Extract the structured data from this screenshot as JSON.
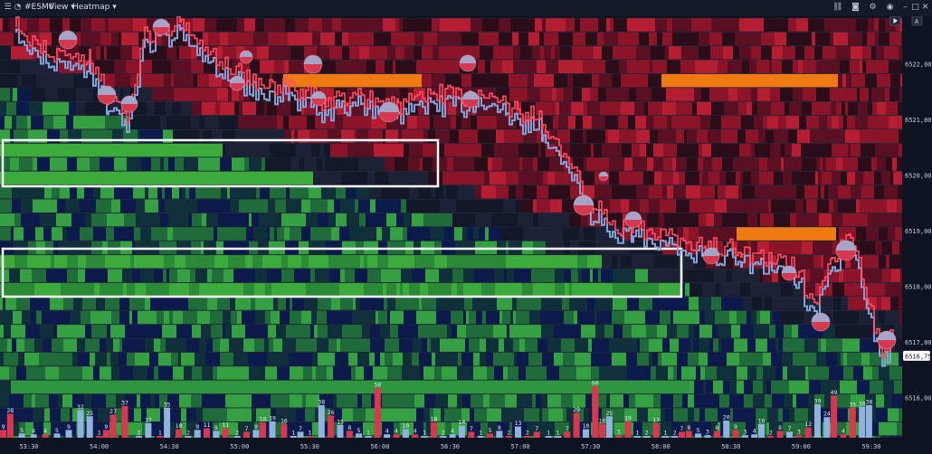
{
  "toolbar": {
    "symbol": "#ESM6",
    "view_label": "View",
    "mode_label": "Heatmap",
    "icons": [
      "link-icon",
      "camera-icon",
      "eye-icon",
      "gear-icon",
      "minimize-icon",
      "maximize-icon",
      "close-icon"
    ]
  },
  "colors": {
    "background": "#0b0f1c",
    "bid_liquidity": "#3cab3c",
    "ask_liquidity": "#c8203a",
    "ask_hot": "#ef7a12",
    "buy_volume": "#8fb3de",
    "sell_volume": "#d6384f",
    "price_up": "#ff4d63",
    "price_down": "#7fa2d8",
    "highlight_box": "#ffffff"
  },
  "chart_data": {
    "type": "heatmap",
    "x_labels": [
      "53:30",
      "54:00",
      "54:30",
      "55:00",
      "55:30",
      "56:00",
      "56:30",
      "57:00",
      "57:30",
      "58:00",
      "58:30",
      "59:00",
      "59:30"
    ],
    "y_labels": [
      "6522,00",
      "6521,00",
      "6520,00",
      "6519,00",
      "6518,00",
      "6517,00",
      "6516,00"
    ],
    "ylim": [
      6515.75,
      6522.5
    ],
    "current_price": "6516,75",
    "volume_bar_labels": [
      {
        "x": "53:19",
        "v": 9,
        "side": "sell"
      },
      {
        "x": "53:22",
        "v": 28,
        "side": "sell"
      },
      {
        "x": "53:27",
        "v": 5,
        "side": "buy"
      },
      {
        "x": "53:32",
        "v": 4,
        "side": "buy"
      },
      {
        "x": "53:37",
        "v": 4,
        "side": "sell"
      },
      {
        "x": "53:42",
        "v": 5,
        "side": "buy"
      },
      {
        "x": "53:47",
        "v": 9,
        "side": "buy"
      },
      {
        "x": "53:52",
        "v": 32,
        "side": "buy"
      },
      {
        "x": "53:56",
        "v": 25,
        "side": "buy"
      },
      {
        "x": "54:00",
        "v": 1,
        "side": "sell"
      },
      {
        "x": "54:03",
        "v": 9,
        "side": "sell"
      },
      {
        "x": "54:06",
        "v": 27,
        "side": "sell"
      },
      {
        "x": "54:11",
        "v": 37,
        "side": "sell"
      },
      {
        "x": "54:17",
        "v": 2,
        "side": "buy"
      },
      {
        "x": "54:21",
        "v": 17,
        "side": "buy"
      },
      {
        "x": "54:26",
        "v": 1,
        "side": "sell"
      },
      {
        "x": "54:29",
        "v": 35,
        "side": "buy"
      },
      {
        "x": "54:34",
        "v": 10,
        "side": "sell"
      },
      {
        "x": "54:38",
        "v": 2,
        "side": "buy"
      },
      {
        "x": "54:42",
        "v": 9,
        "side": "buy"
      },
      {
        "x": "54:46",
        "v": 11,
        "side": "sell"
      },
      {
        "x": "54:50",
        "v": 8,
        "side": "buy"
      },
      {
        "x": "54:54",
        "v": 11,
        "side": "sell"
      },
      {
        "x": "54:59",
        "v": 2,
        "side": "buy"
      },
      {
        "x": "55:03",
        "v": 7,
        "side": "sell"
      },
      {
        "x": "55:07",
        "v": 9,
        "side": "buy"
      },
      {
        "x": "55:10",
        "v": 18,
        "side": "sell"
      },
      {
        "x": "55:14",
        "v": 19,
        "side": "buy"
      },
      {
        "x": "55:19",
        "v": 16,
        "side": "sell"
      },
      {
        "x": "55:23",
        "v": 1,
        "side": "buy"
      },
      {
        "x": "55:26",
        "v": 7,
        "side": "buy"
      },
      {
        "x": "55:30",
        "v": 1,
        "side": "sell"
      },
      {
        "x": "55:35",
        "v": 38,
        "side": "buy"
      },
      {
        "x": "55:39",
        "v": 26,
        "side": "sell"
      },
      {
        "x": "55:43",
        "v": 15,
        "side": "buy"
      },
      {
        "x": "55:47",
        "v": 8,
        "side": "sell"
      },
      {
        "x": "55:51",
        "v": 5,
        "side": "buy"
      },
      {
        "x": "55:55",
        "v": 1,
        "side": "buy"
      },
      {
        "x": "55:59",
        "v": 58,
        "side": "sell"
      },
      {
        "x": "56:03",
        "v": 4,
        "side": "buy"
      },
      {
        "x": "56:07",
        "v": 4,
        "side": "sell"
      },
      {
        "x": "56:11",
        "v": 10,
        "side": "buy"
      },
      {
        "x": "56:15",
        "v": 4,
        "side": "sell"
      },
      {
        "x": "56:19",
        "v": 1,
        "side": "buy"
      },
      {
        "x": "56:23",
        "v": 18,
        "side": "sell"
      },
      {
        "x": "56:27",
        "v": 2,
        "side": "buy"
      },
      {
        "x": "56:31",
        "v": 4,
        "side": "buy"
      },
      {
        "x": "56:35",
        "v": 14,
        "side": "buy"
      },
      {
        "x": "56:39",
        "v": 7,
        "side": "sell"
      },
      {
        "x": "56:43",
        "v": 1,
        "side": "buy"
      },
      {
        "x": "56:47",
        "v": 5,
        "side": "sell"
      },
      {
        "x": "56:51",
        "v": 8,
        "side": "buy"
      },
      {
        "x": "56:55",
        "v": 2,
        "side": "sell"
      },
      {
        "x": "56:59",
        "v": 13,
        "side": "buy"
      },
      {
        "x": "57:03",
        "v": 2,
        "side": "sell"
      },
      {
        "x": "57:07",
        "v": 7,
        "side": "sell"
      },
      {
        "x": "57:12",
        "v": 1,
        "side": "buy"
      },
      {
        "x": "57:16",
        "v": 1,
        "side": "buy"
      },
      {
        "x": "57:20",
        "v": 7,
        "side": "sell"
      },
      {
        "x": "57:24",
        "v": 29,
        "side": "sell"
      },
      {
        "x": "57:28",
        "v": 10,
        "side": "buy"
      },
      {
        "x": "57:32",
        "v": 60,
        "side": "sell"
      },
      {
        "x": "57:35",
        "v": 16,
        "side": "sell"
      },
      {
        "x": "57:38",
        "v": 25,
        "side": "buy"
      },
      {
        "x": "57:42",
        "v": 3,
        "side": "sell"
      },
      {
        "x": "57:46",
        "v": 19,
        "side": "sell"
      },
      {
        "x": "57:50",
        "v": 1,
        "side": "buy"
      },
      {
        "x": "57:54",
        "v": 2,
        "side": "buy"
      },
      {
        "x": "57:58",
        "v": 17,
        "side": "sell"
      },
      {
        "x": "58:02",
        "v": 1,
        "side": "buy"
      },
      {
        "x": "58:06",
        "v": 2,
        "side": "buy"
      },
      {
        "x": "58:09",
        "v": 7,
        "side": "sell"
      },
      {
        "x": "58:12",
        "v": 8,
        "side": "sell"
      },
      {
        "x": "58:16",
        "v": 5,
        "side": "buy"
      },
      {
        "x": "58:20",
        "v": 3,
        "side": "buy"
      },
      {
        "x": "58:24",
        "v": 8,
        "side": "sell"
      },
      {
        "x": "58:28",
        "v": 20,
        "side": "buy"
      },
      {
        "x": "58:32",
        "v": 9,
        "side": "sell"
      },
      {
        "x": "58:36",
        "v": 3,
        "side": "buy"
      },
      {
        "x": "58:40",
        "v": 4,
        "side": "buy"
      },
      {
        "x": "58:43",
        "v": 16,
        "side": "buy"
      },
      {
        "x": "58:47",
        "v": 2,
        "side": "sell"
      },
      {
        "x": "58:51",
        "v": 8,
        "side": "sell"
      },
      {
        "x": "58:55",
        "v": 7,
        "side": "buy"
      },
      {
        "x": "58:59",
        "v": 3,
        "side": "sell"
      },
      {
        "x": "59:03",
        "v": 12,
        "side": "sell"
      },
      {
        "x": "59:07",
        "v": 39,
        "side": "buy"
      },
      {
        "x": "59:11",
        "v": 24,
        "side": "buy"
      },
      {
        "x": "59:14",
        "v": 49,
        "side": "sell"
      },
      {
        "x": "59:18",
        "v": 4,
        "side": "sell"
      },
      {
        "x": "59:22",
        "v": 35,
        "side": "sell"
      },
      {
        "x": "59:26",
        "v": 36,
        "side": "buy"
      },
      {
        "x": "59:29",
        "v": 38,
        "side": "buy"
      }
    ]
  }
}
